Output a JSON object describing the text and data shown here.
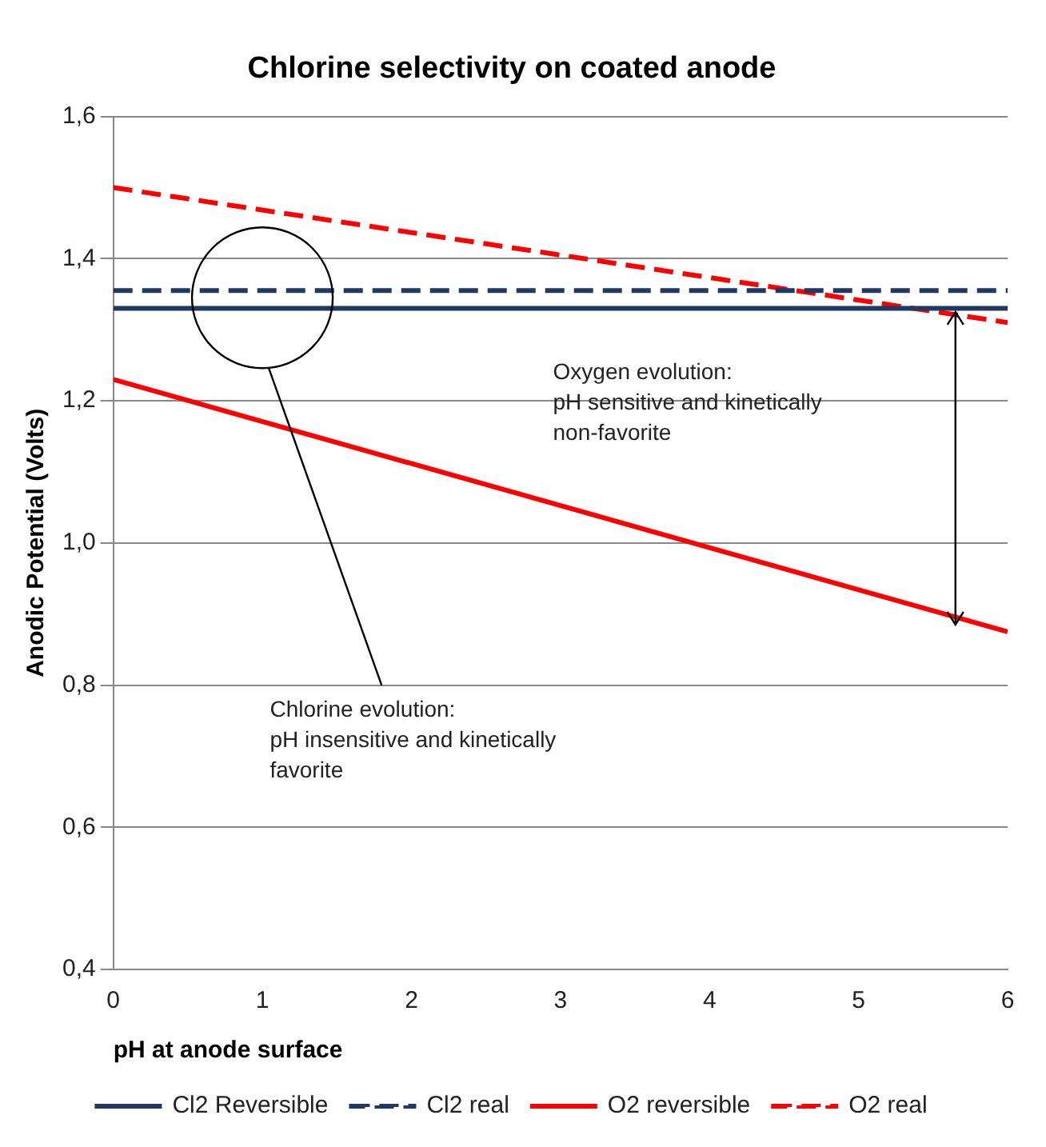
{
  "chart_data": {
    "type": "line",
    "title": "Chlorine selectivity on coated anode",
    "xlabel": "pH at anode surface",
    "ylabel": "Anodic Potential (Volts)",
    "xlim": [
      0,
      6
    ],
    "xticks": [
      0,
      1,
      2,
      3,
      4,
      5,
      6
    ],
    "ylim": [
      0.4,
      1.6
    ],
    "yticks": [
      {
        "value": 0.4,
        "label": "0,4"
      },
      {
        "value": 0.6,
        "label": "0,6"
      },
      {
        "value": 0.8,
        "label": "0,8"
      },
      {
        "value": 1.0,
        "label": "1,0"
      },
      {
        "value": 1.2,
        "label": "1,2"
      },
      {
        "value": 1.4,
        "label": "1,4"
      },
      {
        "value": 1.6,
        "label": "1,6"
      }
    ],
    "grid": "y",
    "legend": "bottom",
    "marker": "none",
    "x": [
      0,
      6
    ],
    "series": [
      {
        "name": "Cl2 Reversible",
        "color": "#1f3864",
        "values": [
          1.33,
          1.33
        ],
        "line_style": "solid"
      },
      {
        "name": "Cl2 real",
        "color": "#1f3864",
        "values": [
          1.355,
          1.355
        ],
        "line_style": "dashed"
      },
      {
        "name": "O2 reversible",
        "color": "#ff0000",
        "values": [
          1.23,
          0.875
        ],
        "line_style": "solid"
      },
      {
        "name": "O2 real",
        "color": "#ff0000",
        "values": [
          1.5,
          1.31
        ],
        "line_style": "dashed"
      }
    ],
    "annotations": [
      "Oxygen evolution:\npH sensitive and kinetically\nnon-favorite",
      "Chlorine evolution:\npH insensitive and kinetically\nfavorite"
    ]
  }
}
